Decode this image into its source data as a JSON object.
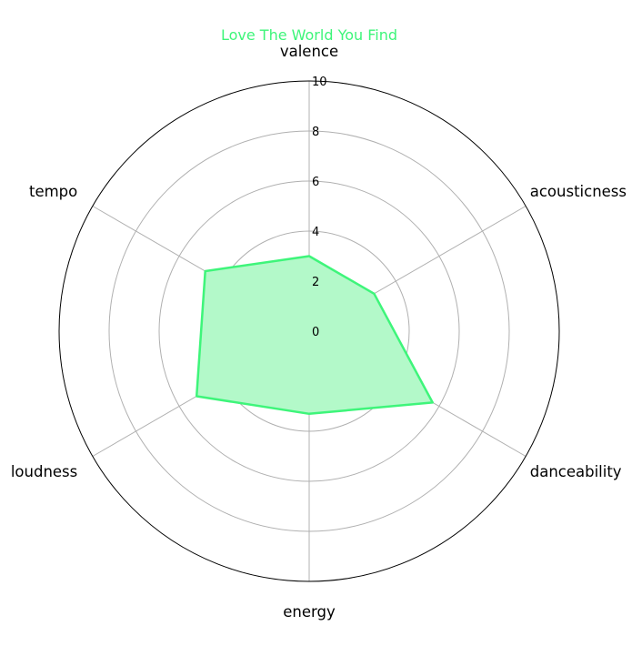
{
  "chart_data": {
    "type": "radar",
    "title": "Love The World You Find",
    "categories": [
      "valence",
      "acousticness",
      "danceability",
      "energy",
      "loudness",
      "tempo"
    ],
    "series": [
      {
        "values": [
          3.0,
          3.0,
          5.7,
          3.3,
          5.2,
          4.8
        ]
      }
    ],
    "rlim": [
      0,
      10
    ],
    "rticks": [
      0,
      2,
      4,
      6,
      8,
      10
    ],
    "grid": true,
    "colors": {
      "line": "#3ef57a",
      "fill": "#b3f9c9",
      "grid": "#b0b0b0",
      "frame": "#000000"
    }
  }
}
